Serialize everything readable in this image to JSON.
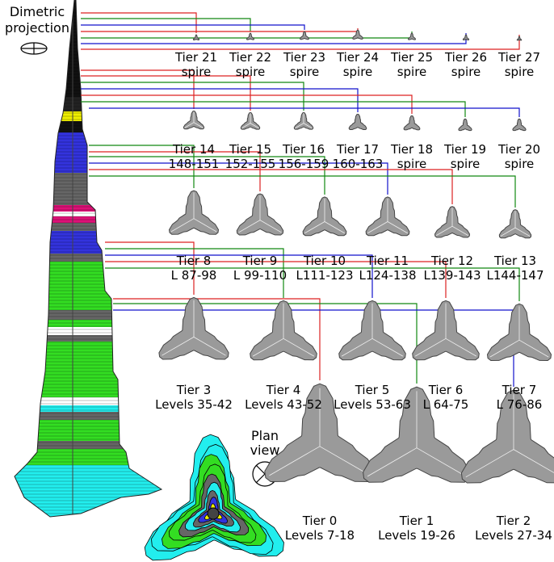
{
  "headings": {
    "dimetric": [
      "Dimetric",
      "projection"
    ],
    "plan": [
      "Plan",
      "view"
    ]
  },
  "colors": {
    "red": "#dd2222",
    "green": "#118811",
    "blue": "#1111cc",
    "tower_green": "#33dd22",
    "tower_blue": "#3333dd",
    "tower_cyan": "#22eeee",
    "tower_gray": "#666666",
    "tower_yellow": "#eeee00",
    "floorplate": "#9a9a9a"
  },
  "tiers": [
    {
      "id": "t21",
      "line1": "Tier 21",
      "line2": "spire",
      "color": "red"
    },
    {
      "id": "t22",
      "line1": "Tier 22",
      "line2": "spire",
      "color": "green"
    },
    {
      "id": "t23",
      "line1": "Tier 23",
      "line2": "spire",
      "color": "blue"
    },
    {
      "id": "t24",
      "line1": "Tier 24",
      "line2": "spire",
      "color": "red"
    },
    {
      "id": "t25",
      "line1": "Tier 25",
      "line2": "spire",
      "color": "green"
    },
    {
      "id": "t26",
      "line1": "Tier 26",
      "line2": "spire",
      "color": "blue"
    },
    {
      "id": "t27",
      "line1": "Tier 27",
      "line2": "spire",
      "color": "red"
    },
    {
      "id": "t14",
      "line1": "Tier 14",
      "line2": "148-151",
      "color": "red"
    },
    {
      "id": "t15",
      "line1": "Tier 15",
      "line2": "152-155",
      "color": "red"
    },
    {
      "id": "t16",
      "line1": "Tier 16",
      "line2": "156-159",
      "color": "green"
    },
    {
      "id": "t17",
      "line1": "Tier 17",
      "line2": "160-163",
      "color": "blue"
    },
    {
      "id": "t18",
      "line1": "Tier 18",
      "line2": "spire",
      "color": "red"
    },
    {
      "id": "t19",
      "line1": "Tier 19",
      "line2": "spire",
      "color": "green"
    },
    {
      "id": "t20",
      "line1": "Tier 20",
      "line2": "spire",
      "color": "blue"
    },
    {
      "id": "t8",
      "line1": "Tier 8",
      "line2": "L 87-98",
      "color": "green"
    },
    {
      "id": "t9",
      "line1": "Tier 9",
      "line2": "L 99-110",
      "color": "red"
    },
    {
      "id": "t10",
      "line1": "Tier 10",
      "line2": "L111-123",
      "color": "green"
    },
    {
      "id": "t11",
      "line1": "Tier 11",
      "line2": "L124-138",
      "color": "blue"
    },
    {
      "id": "t12",
      "line1": "Tier 12",
      "line2": "L139-143",
      "color": "red"
    },
    {
      "id": "t13",
      "line1": "Tier 13",
      "line2": "L144-147",
      "color": "green"
    },
    {
      "id": "t3",
      "line1": "Tier 3",
      "line2": "Levels 35-42",
      "color": "red"
    },
    {
      "id": "t4",
      "line1": "Tier 4",
      "line2": "Levels 43-52",
      "color": "green"
    },
    {
      "id": "t5",
      "line1": "Tier 5",
      "line2": "Levels 53-63",
      "color": "blue"
    },
    {
      "id": "t6",
      "line1": "Tier 6",
      "line2": "L 64-75",
      "color": "red"
    },
    {
      "id": "t7",
      "line1": "Tier 7",
      "line2": "L 76-86",
      "color": "green"
    },
    {
      "id": "t0",
      "line1": "Tier 0",
      "line2": "Levels 7-18",
      "color": "red"
    },
    {
      "id": "t1",
      "line1": "Tier 1",
      "line2": "Levels 19-26",
      "color": "green"
    },
    {
      "id": "t2",
      "line1": "Tier 2",
      "line2": "Levels 27-34",
      "color": "blue"
    }
  ]
}
